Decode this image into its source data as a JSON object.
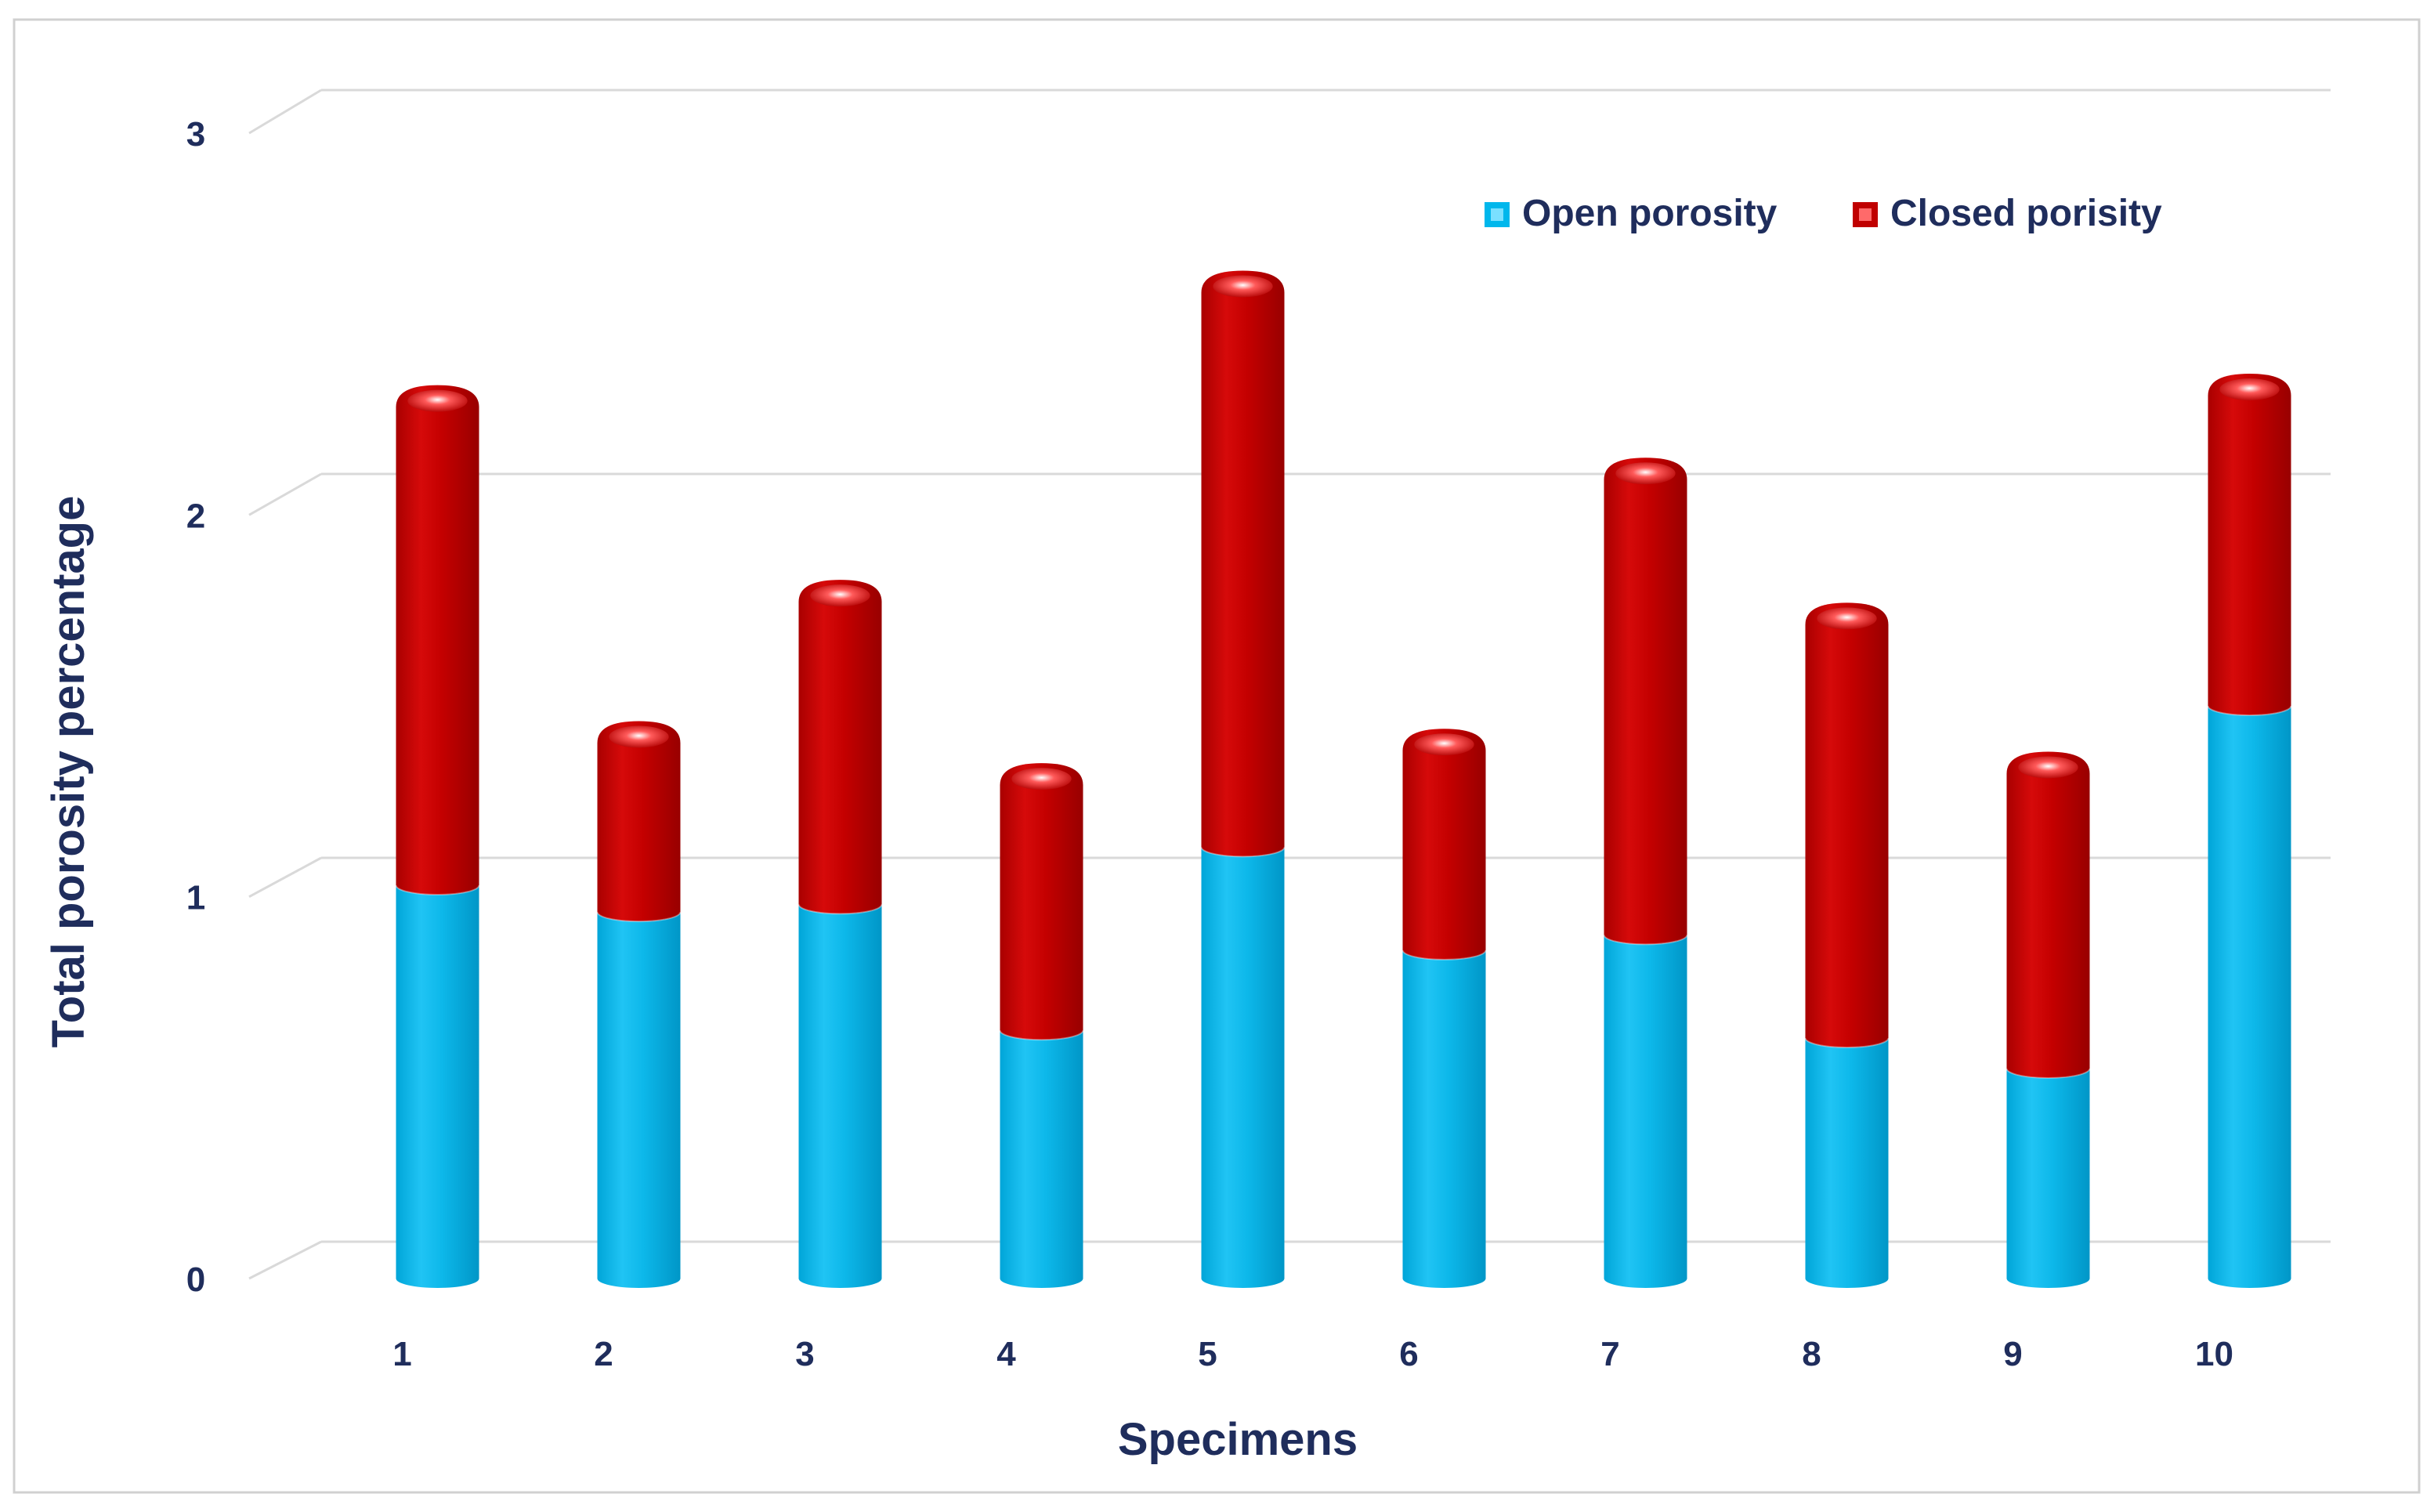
{
  "chart_data": {
    "type": "bar",
    "stacked": true,
    "style": "3d-cylinder",
    "title": "",
    "xlabel": "Specimens",
    "ylabel": "Total porosity percentage",
    "ylim": [
      0,
      3
    ],
    "yticks": [
      0,
      1,
      2,
      3
    ],
    "ytick_labels": [
      "0",
      "1",
      "2",
      "3"
    ],
    "grid": true,
    "legend_position": "top-right",
    "categories": [
      "1",
      "2",
      "3",
      "4",
      "5",
      "6",
      "7",
      "8",
      "9",
      "10"
    ],
    "series": [
      {
        "name": "Open porosity",
        "color": "#00b7ec",
        "values": [
          1.03,
          0.96,
          0.98,
          0.65,
          1.13,
          0.86,
          0.9,
          0.63,
          0.55,
          1.5
        ]
      },
      {
        "name": "Closed porisity",
        "color": "#c00000",
        "values": [
          1.31,
          0.5,
          0.85,
          0.7,
          1.51,
          0.58,
          1.25,
          1.14,
          0.83,
          0.87
        ]
      }
    ]
  },
  "colors": {
    "text": "#1f2d5c",
    "grid": "#d9d9d9",
    "frame": "#d0d0d0"
  }
}
